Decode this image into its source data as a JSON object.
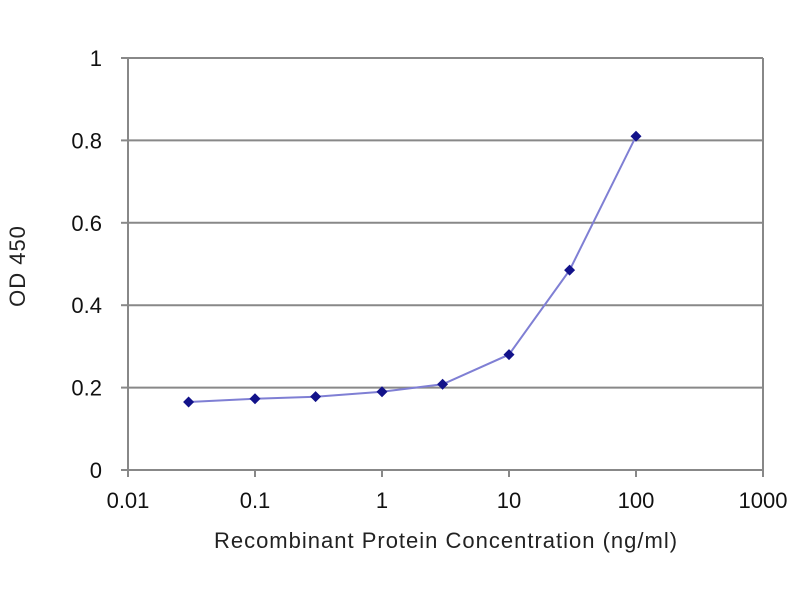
{
  "chart_data": {
    "type": "line",
    "title": "",
    "xlabel": "Recombinant Protein Concentration (ng/ml)",
    "ylabel": "OD 450",
    "x_scale": "log",
    "xlim": [
      0.01,
      1000
    ],
    "ylim": [
      0,
      1
    ],
    "xticks": [
      "0.01",
      "0.1",
      "1",
      "10",
      "100",
      "1000"
    ],
    "yticks": [
      "0",
      "0.2",
      "0.4",
      "0.6",
      "0.8",
      "1"
    ],
    "grid": "horizontal",
    "legend": "none",
    "series": [
      {
        "x": [
          0.03,
          0.1,
          0.3,
          1,
          3,
          10,
          30,
          100
        ],
        "y": [
          0.165,
          0.173,
          0.178,
          0.19,
          0.208,
          0.28,
          0.485,
          0.81
        ]
      }
    ],
    "colors": {
      "line": "#7f7fd4",
      "marker": "#12128a",
      "grid": "#888888",
      "axis": "#888888"
    }
  }
}
